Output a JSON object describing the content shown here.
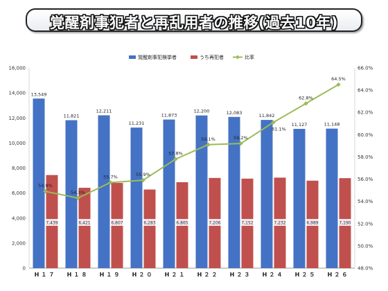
{
  "title": "覚醒剤事犯者と再乱用者の推移(過去10年)",
  "colors": {
    "offenders": "#4472c4",
    "repeat": "#c0504d",
    "ratio": "#9bbb59"
  },
  "chart_data": {
    "type": "bar",
    "categories": [
      "H17",
      "H18",
      "H19",
      "H20",
      "H21",
      "H22",
      "H23",
      "H24",
      "H25",
      "H26"
    ],
    "series": [
      {
        "name": "覚醒剤事犯検挙者",
        "type": "bar",
        "axis": "left",
        "values": [
          13549,
          11821,
          12211,
          11231,
          11873,
          12200,
          12083,
          11842,
          11127,
          11148
        ]
      },
      {
        "name": "うち再犯者",
        "type": "bar",
        "axis": "left",
        "values": [
          7439,
          6421,
          6807,
          6283,
          6865,
          7206,
          7152,
          7232,
          6989,
          7190
        ]
      },
      {
        "name": "比率",
        "type": "line",
        "axis": "right",
        "values": [
          54.9,
          54.3,
          55.7,
          55.9,
          57.8,
          59.1,
          59.2,
          61.1,
          62.8,
          64.5
        ],
        "labels": [
          "54.9%",
          "54.3%",
          "55.7%",
          "55.9%",
          "57.8%",
          "59.1%",
          "59.2%",
          "61.1%",
          "62.8%",
          "64.5%"
        ]
      }
    ],
    "bar_labels_total": [
      "13,549",
      "11,821",
      "12,211",
      "11,231",
      "11,873",
      "12,200",
      "12,083",
      "11,842",
      "11,127",
      "11,148"
    ],
    "bar_labels_repeat": [
      "7,439",
      "6,421",
      "6,807",
      "6,283",
      "6,865",
      "7,206",
      "7,152",
      "7,232",
      "6,989",
      "7,190"
    ],
    "ylim_left": [
      0,
      16000
    ],
    "yticks_left": [
      "0",
      "2,000",
      "4,000",
      "6,000",
      "8,000",
      "10,000",
      "12,000",
      "14,000",
      "16,000"
    ],
    "ylim_right": [
      48,
      66
    ],
    "yticks_right": [
      "48.0%",
      "50.0%",
      "52.0%",
      "54.0%",
      "56.0%",
      "58.0%",
      "60.0%",
      "62.0%",
      "64.0%",
      "66.0%"
    ],
    "xticks": [
      "H１７",
      "H１８",
      "H１９",
      "H２０",
      "H２１",
      "H２２",
      "H２３",
      "H２４",
      "H２５",
      "H２６"
    ],
    "legend_position": "top-center",
    "grid": false
  }
}
